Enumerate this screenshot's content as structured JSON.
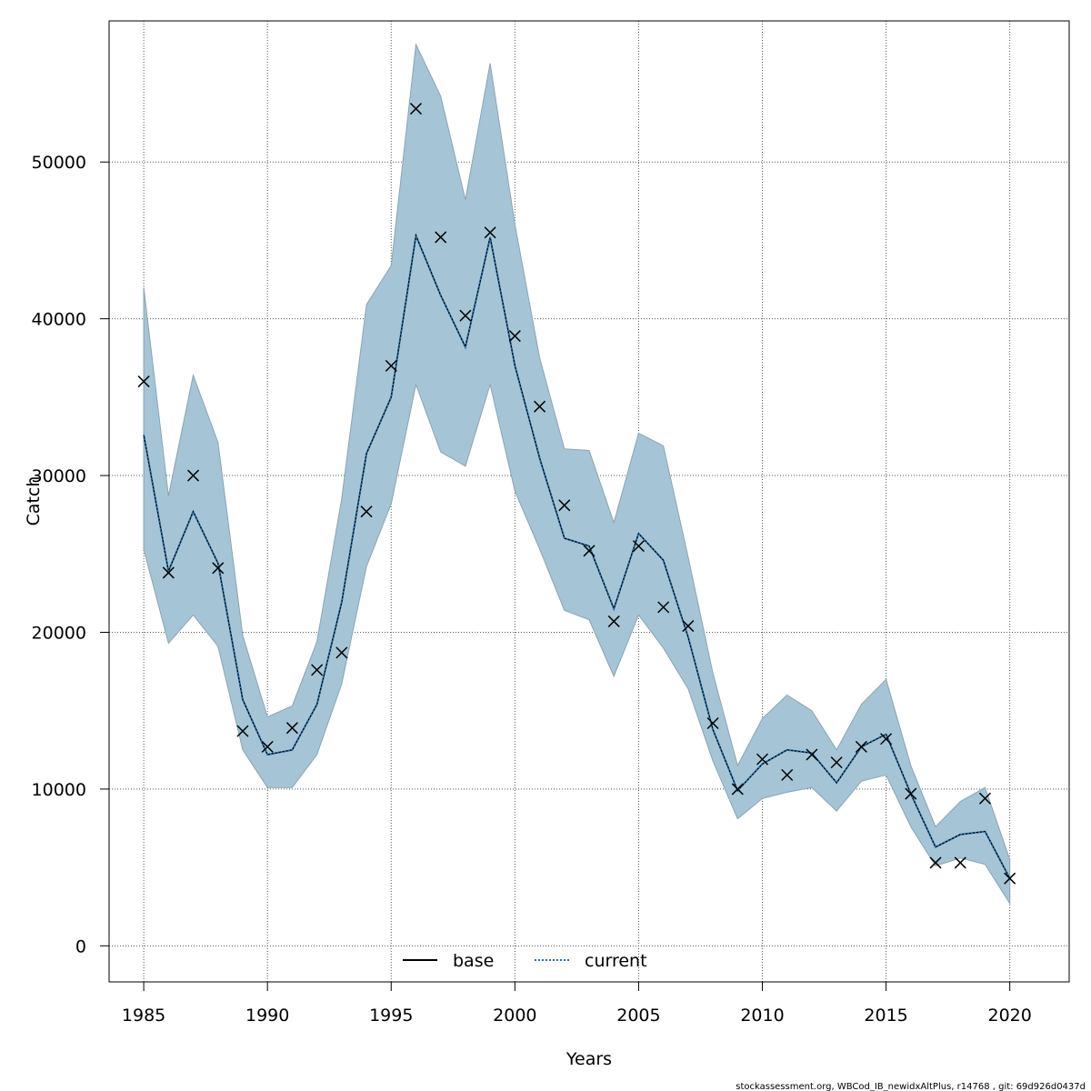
{
  "chart_data": {
    "type": "line",
    "xlabel": "Years",
    "ylabel": "Catch",
    "xlim": [
      1983.6,
      2022.4
    ],
    "ylim": [
      -2300,
      59000
    ],
    "xticks": [
      1985,
      1990,
      1995,
      2000,
      2005,
      2010,
      2015,
      2020
    ],
    "yticks": [
      0,
      10000,
      20000,
      30000,
      40000,
      50000
    ],
    "grid": true,
    "legend_position": "bottom-center",
    "x": [
      1985,
      1986,
      1987,
      1988,
      1989,
      1990,
      1991,
      1992,
      1993,
      1994,
      1995,
      1996,
      1997,
      1998,
      1999,
      2000,
      2001,
      2002,
      2003,
      2004,
      2005,
      2006,
      2007,
      2008,
      2009,
      2010,
      2011,
      2012,
      2013,
      2014,
      2015,
      2016,
      2017,
      2018,
      2019,
      2020
    ],
    "observed": {
      "marker": "x",
      "values": [
        36000,
        23800,
        30000,
        24100,
        13700,
        12700,
        13900,
        17600,
        18700,
        27700,
        37000,
        53400,
        45200,
        40200,
        45500,
        38900,
        34400,
        28100,
        25200,
        20700,
        25500,
        21600,
        20400,
        14200,
        10000,
        11900,
        10900,
        12200,
        11700,
        12700,
        13200,
        9700,
        5300,
        5300,
        9400,
        4300
      ]
    },
    "band": {
      "color": "#a5c5d6",
      "upper": [
        42000,
        28700,
        36400,
        32100,
        19800,
        14600,
        15300,
        19400,
        28500,
        40900,
        43400,
        57500,
        54200,
        47600,
        56300,
        46000,
        37500,
        31700,
        31600,
        27000,
        32700,
        31900,
        24800,
        17400,
        11500,
        14500,
        16000,
        15000,
        12500,
        15400,
        17000,
        11500,
        7600,
        9200,
        10100,
        5500
      ],
      "lower": [
        25300,
        19300,
        21100,
        19100,
        12500,
        10100,
        10100,
        12200,
        16700,
        24200,
        28200,
        35800,
        31500,
        30600,
        35800,
        29000,
        25300,
        21400,
        20800,
        17200,
        21100,
        19000,
        16400,
        11800,
        8100,
        9400,
        9800,
        10100,
        8600,
        10500,
        10900,
        7600,
        5100,
        5600,
        5200,
        2700
      ]
    },
    "series": [
      {
        "name": "base",
        "color": "#000000",
        "values": [
          32600,
          23900,
          27700,
          24400,
          15700,
          12200,
          12500,
          15400,
          21900,
          31400,
          35000,
          45300,
          41500,
          38200,
          45200,
          37000,
          31100,
          26000,
          25500,
          21500,
          26300,
          24600,
          19700,
          13800,
          9900,
          11600,
          12500,
          12300,
          10400,
          12700,
          13500,
          9700,
          6300,
          7100,
          7300,
          4300
        ]
      },
      {
        "name": "current",
        "color": "#2171b5",
        "values": [
          32600,
          23900,
          27700,
          24400,
          15700,
          12200,
          12500,
          15400,
          21900,
          31400,
          35000,
          45300,
          41500,
          38200,
          45200,
          37000,
          31100,
          26000,
          25500,
          21500,
          26300,
          24600,
          19700,
          13800,
          9900,
          11600,
          12500,
          12300,
          10400,
          12700,
          13500,
          9700,
          6300,
          7100,
          7300,
          4300
        ]
      }
    ]
  },
  "footer": "stockassessment.org, WBCod_IB_newidxAltPlus, r14768 , git: 69d926d0437d"
}
